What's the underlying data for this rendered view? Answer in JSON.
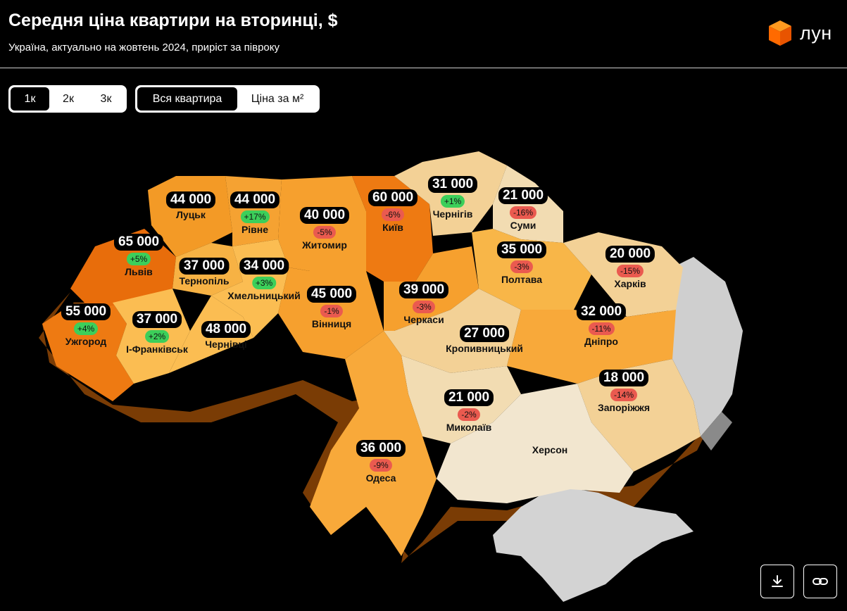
{
  "header": {
    "title": "Середня ціна квартири на вторинці, $",
    "subtitle": "Україна, актуально на жовтень 2024, приріст за півроку",
    "logo_text": "лун"
  },
  "room_toggle": {
    "options": [
      "1к",
      "2к",
      "3к"
    ],
    "selected": "1к"
  },
  "mode_toggle": {
    "options": [
      "Вся квартира",
      "Ціна за м²"
    ],
    "selected": "Вся квартира"
  },
  "colors": {
    "background": "#000000",
    "high": "#ee7a12",
    "mid_high": "#f6a02e",
    "mid": "#fbbd52",
    "low": "#f3d196",
    "lowest": "#f2e6cf",
    "occupied": "#cfcfcf",
    "increase": "#3ccf5a",
    "decrease": "#ea5a4f"
  },
  "regions": [
    {
      "city": "Луцьк",
      "price": "44 000",
      "change": ""
    },
    {
      "city": "Рівне",
      "price": "44 000",
      "change": "+17%"
    },
    {
      "city": "Житомир",
      "price": "40 000",
      "change": "-5%"
    },
    {
      "city": "Київ",
      "price": "60 000",
      "change": "-6%"
    },
    {
      "city": "Чернігів",
      "price": "31 000",
      "change": "+1%"
    },
    {
      "city": "Суми",
      "price": "21 000",
      "change": "-16%"
    },
    {
      "city": "Львів",
      "price": "65 000",
      "change": "+5%"
    },
    {
      "city": "Тернопіль",
      "price": "37 000",
      "change": ""
    },
    {
      "city": "Хмельницький",
      "price": "34 000",
      "change": "+3%"
    },
    {
      "city": "Вінниця",
      "price": "45 000",
      "change": "-1%"
    },
    {
      "city": "Черкаси",
      "price": "39 000",
      "change": "-3%"
    },
    {
      "city": "Полтава",
      "price": "35 000",
      "change": "-3%"
    },
    {
      "city": "Харків",
      "price": "20 000",
      "change": "-15%"
    },
    {
      "city": "Ужгород",
      "price": "55 000",
      "change": "+4%"
    },
    {
      "city": "І-Франківськ",
      "price": "37 000",
      "change": "+2%"
    },
    {
      "city": "Чернівці",
      "price": "48 000",
      "change": ""
    },
    {
      "city": "Кропивницький",
      "price": "27 000",
      "change": ""
    },
    {
      "city": "Дніпро",
      "price": "32 000",
      "change": "-11%"
    },
    {
      "city": "Запоріжжя",
      "price": "18 000",
      "change": "-14%"
    },
    {
      "city": "Миколаїв",
      "price": "21 000",
      "change": "-2%"
    },
    {
      "city": "Одеса",
      "price": "36 000",
      "change": "-9%"
    },
    {
      "city": "Херсон",
      "price": "",
      "change": ""
    }
  ],
  "actions": {
    "download_icon": "download-icon",
    "link_icon": "link-icon"
  }
}
